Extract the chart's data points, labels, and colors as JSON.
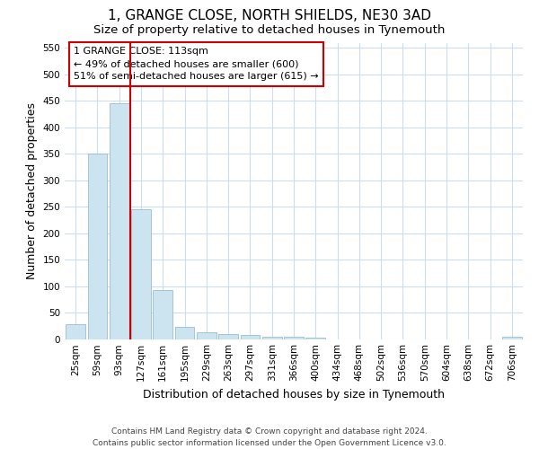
{
  "title": "1, GRANGE CLOSE, NORTH SHIELDS, NE30 3AD",
  "subtitle": "Size of property relative to detached houses in Tynemouth",
  "xlabel": "Distribution of detached houses by size in Tynemouth",
  "ylabel": "Number of detached properties",
  "bar_labels": [
    "25sqm",
    "59sqm",
    "93sqm",
    "127sqm",
    "161sqm",
    "195sqm",
    "229sqm",
    "263sqm",
    "297sqm",
    "331sqm",
    "366sqm",
    "400sqm",
    "434sqm",
    "468sqm",
    "502sqm",
    "536sqm",
    "570sqm",
    "604sqm",
    "638sqm",
    "672sqm",
    "706sqm"
  ],
  "bar_values": [
    28,
    350,
    445,
    245,
    93,
    23,
    13,
    10,
    7,
    5,
    4,
    2,
    0,
    0,
    0,
    0,
    0,
    0,
    0,
    0,
    4
  ],
  "bar_color": "#cce4f0",
  "bar_edge_color": "#8ab4cc",
  "red_line_x": 2.5,
  "highlight_color": "#cc0000",
  "annotation_title": "1 GRANGE CLOSE: 113sqm",
  "annotation_line1": "← 49% of detached houses are smaller (600)",
  "annotation_line2": "51% of semi-detached houses are larger (615) →",
  "annotation_box_color": "#ffffff",
  "annotation_box_edge": "#cc0000",
  "ylim": [
    0,
    560
  ],
  "yticks": [
    0,
    50,
    100,
    150,
    200,
    250,
    300,
    350,
    400,
    450,
    500,
    550
  ],
  "footer_line1": "Contains HM Land Registry data © Crown copyright and database right 2024.",
  "footer_line2": "Contains public sector information licensed under the Open Government Licence v3.0.",
  "bg_color": "#ffffff",
  "grid_color": "#ccdded",
  "title_fontsize": 11,
  "subtitle_fontsize": 9.5,
  "axis_label_fontsize": 9,
  "tick_fontsize": 7.5,
  "footer_fontsize": 6.5
}
